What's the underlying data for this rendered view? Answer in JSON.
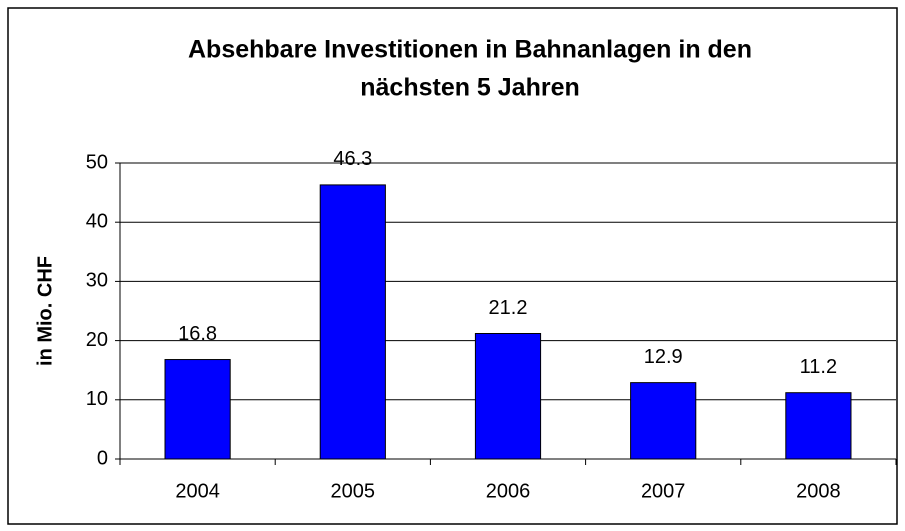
{
  "chart_data": {
    "type": "bar",
    "title": [
      "Absehbare Investitionen in Bahnanlagen in den",
      "nächsten 5 Jahren"
    ],
    "y_label": "in Mio. CHF",
    "categories": [
      "2004",
      "2005",
      "2006",
      "2007",
      "2008"
    ],
    "values": [
      16.8,
      46.3,
      21.2,
      12.9,
      11.2
    ],
    "color": "#0000ff",
    "ylim": [
      0,
      50
    ],
    "yticks": [
      0,
      10,
      20,
      30,
      40,
      50
    ],
    "grid": true
  }
}
